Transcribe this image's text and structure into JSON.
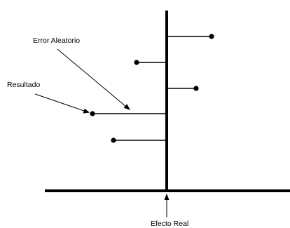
{
  "labels": {
    "error_aleatorio": "Error Aleatorio",
    "resultado": "Resultado",
    "efecto_real": "Efecto Real"
  },
  "diagram": {
    "line_color": "#000000",
    "background_color": "#ffffff",
    "result_markers": [
      {
        "side": "right"
      },
      {
        "side": "left"
      },
      {
        "side": "right"
      },
      {
        "side": "left"
      },
      {
        "side": "left"
      }
    ]
  }
}
